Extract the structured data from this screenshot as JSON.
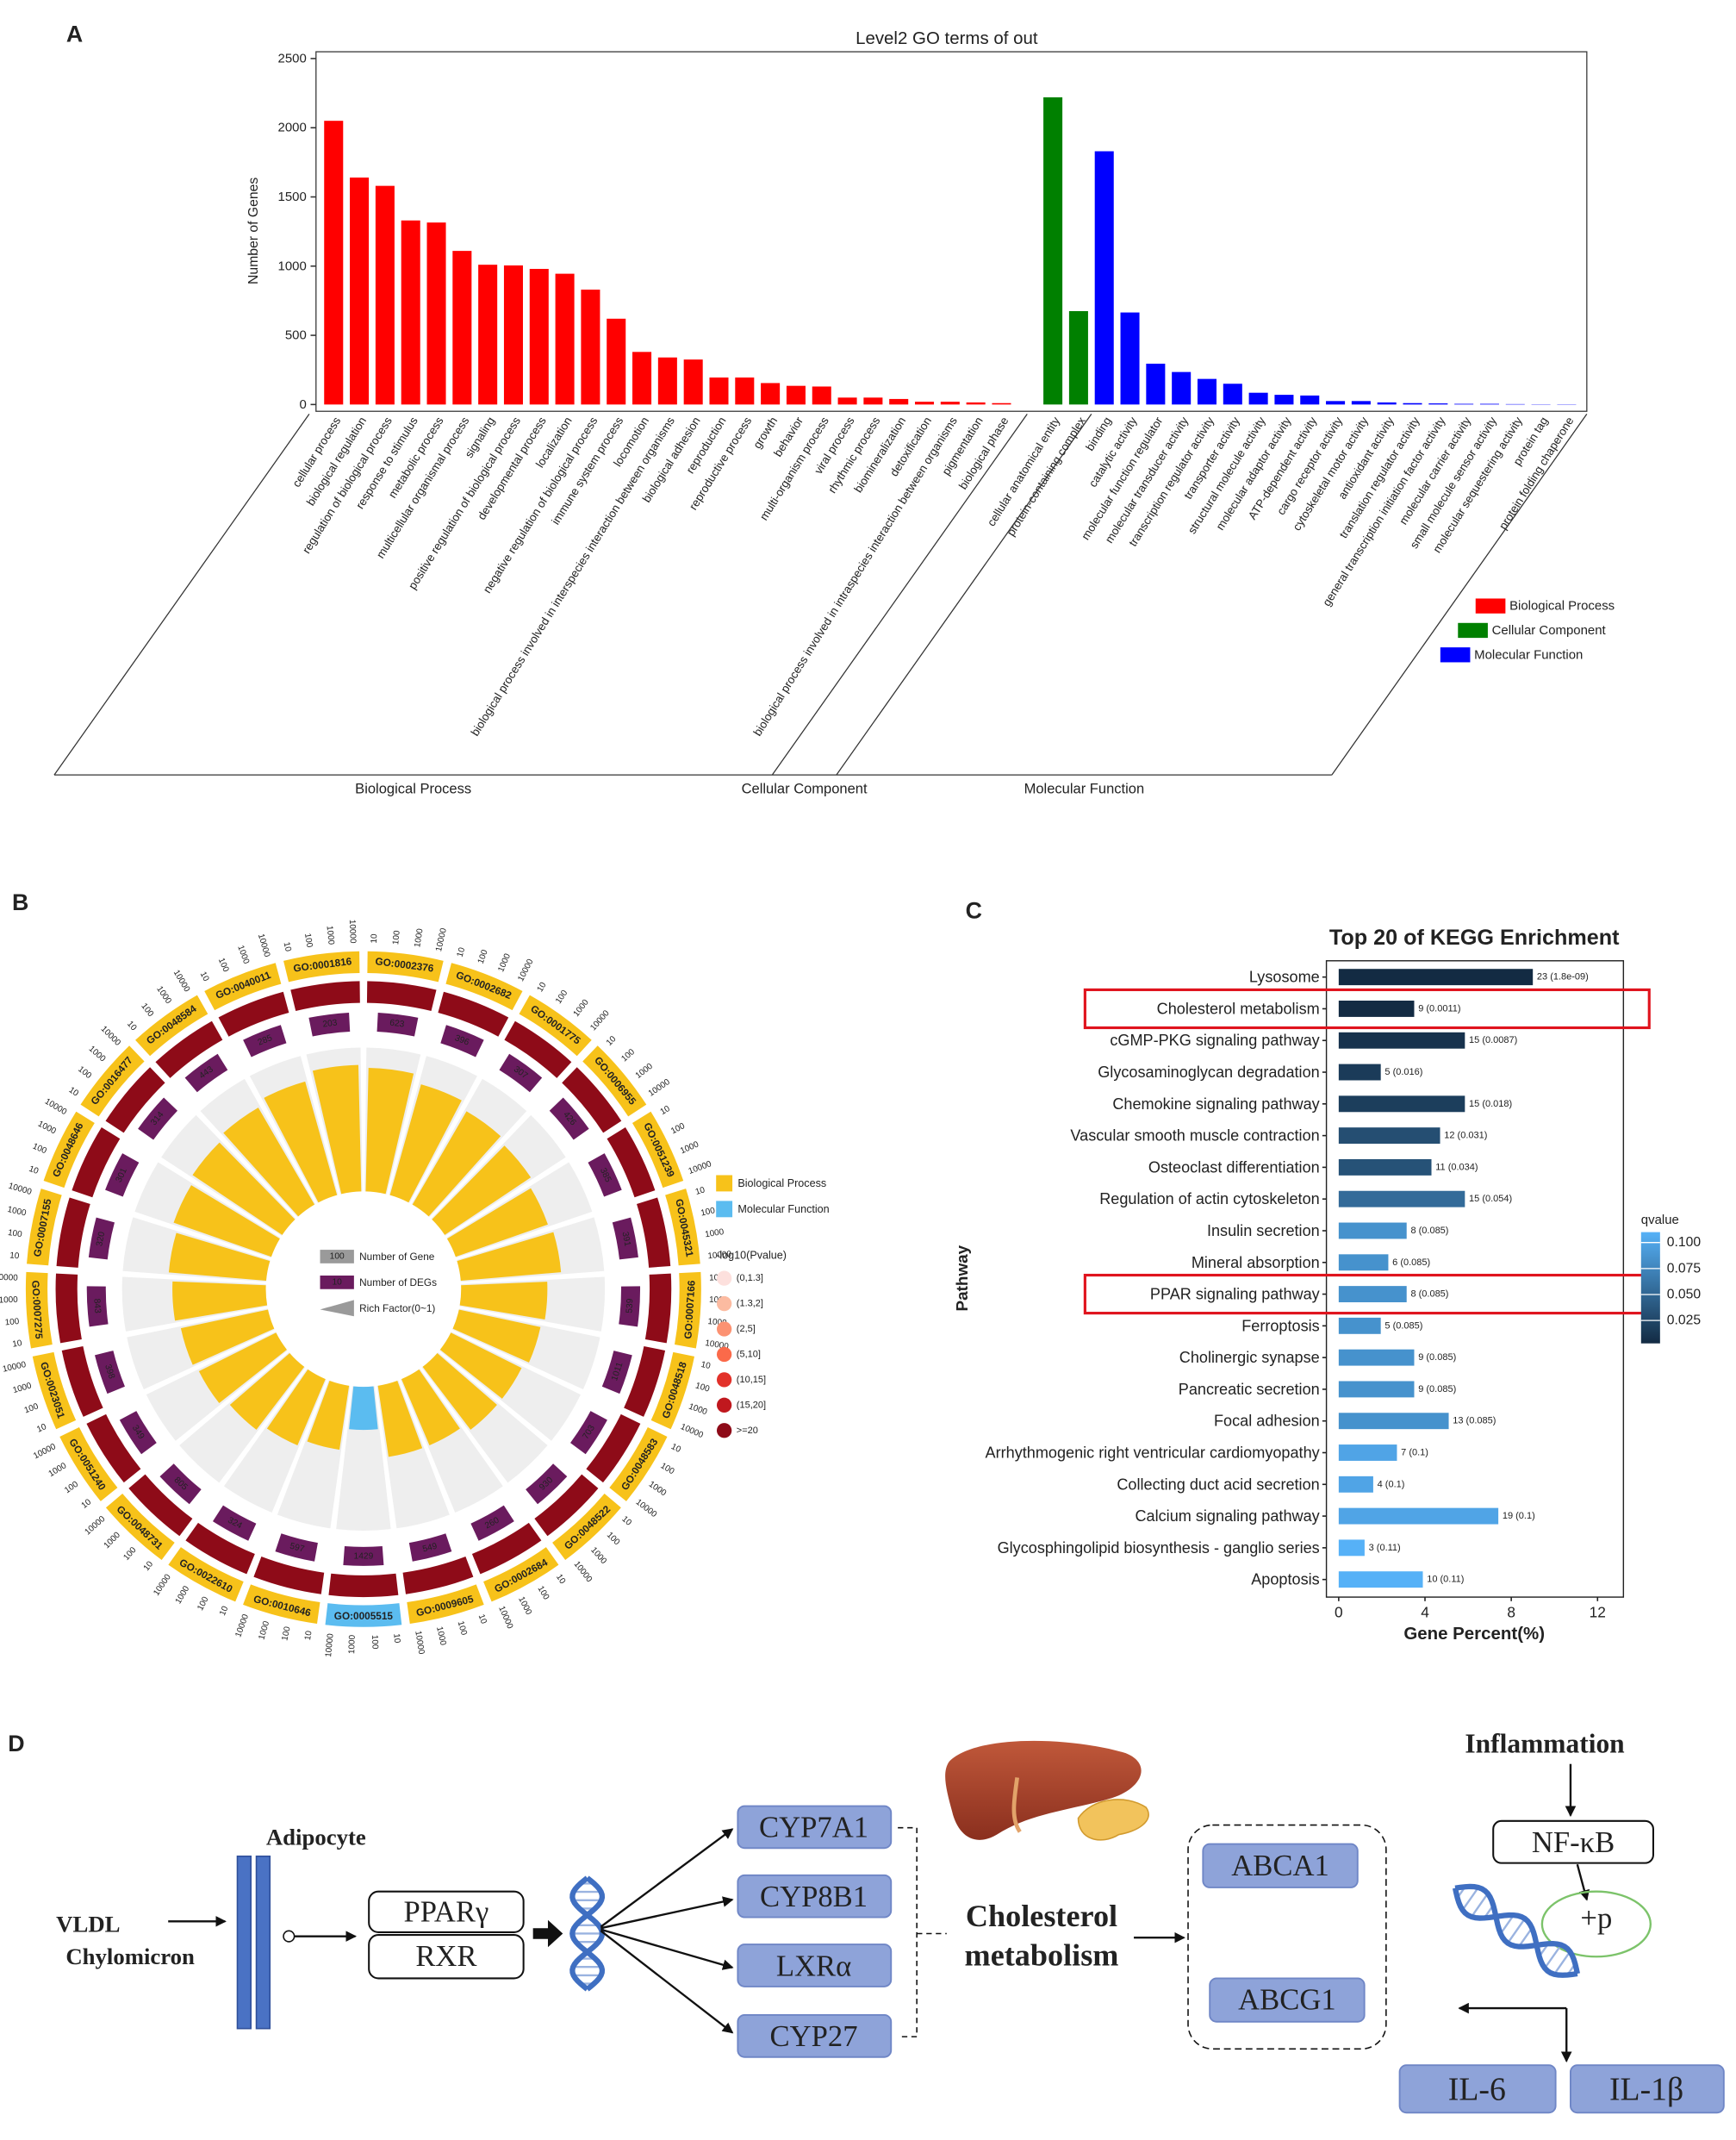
{
  "panel_labels": [
    "A",
    "B",
    "C",
    "D"
  ],
  "chart_data": [
    {
      "type": "bar",
      "title": "Level2 GO terms of out",
      "y_label": "Number of Genes",
      "ylim": [
        0,
        2500
      ],
      "yticks": [
        0,
        500,
        1000,
        1500,
        2000,
        2500
      ],
      "groups": [
        {
          "name": "Biological Process",
          "color": "#ff0000",
          "categories": [
            "cellular process",
            "biological regulation",
            "regulation of biological process",
            "response to stimulus",
            "metabolic process",
            "multicellular organismal process",
            "signaling",
            "positive regulation of biological process",
            "developmental process",
            "localization",
            "negative regulation of biological process",
            "immune system process",
            "locomotion",
            "biological process involved in interspecies interaction between organisms",
            "biological adhesion",
            "reproduction",
            "reproductive process",
            "growth",
            "behavior",
            "multi-organism process",
            "viral process",
            "rhythmic process",
            "biomineralization",
            "detoxification",
            "biological process involved in intraspecies interaction between organisms",
            "pigmentation",
            "biological phase"
          ],
          "values": [
            2050,
            1640,
            1580,
            1330,
            1315,
            1110,
            1010,
            1005,
            980,
            945,
            830,
            620,
            380,
            340,
            325,
            195,
            195,
            155,
            135,
            130,
            50,
            50,
            40,
            20,
            20,
            15,
            10
          ]
        },
        {
          "name": "Cellular Component",
          "color": "#008000",
          "categories": [
            "cellular anatomical entity",
            "protein-containing complex"
          ],
          "values": [
            2220,
            675
          ]
        },
        {
          "name": "Molecular Function",
          "color": "#0000ff",
          "categories": [
            "binding",
            "catalytic activity",
            "molecular function regulator",
            "molecular transducer activity",
            "transcription regulator activity",
            "transporter activity",
            "structural molecule activity",
            "molecular adaptor activity",
            "ATP-dependent activity",
            "cargo receptor activity",
            "cytoskeletal motor activity",
            "antioxidant activity",
            "translation regulator activity",
            "general transcription initiation factor activity",
            "molecular carrier activity",
            "small molecule sensor activity",
            "molecular sequestering activity",
            "protein tag",
            "protein folding chaperone"
          ],
          "values": [
            1830,
            665,
            295,
            235,
            185,
            150,
            85,
            70,
            65,
            25,
            25,
            15,
            10,
            8,
            5,
            5,
            3,
            2,
            2
          ]
        }
      ]
    },
    {
      "type": "radial_bar",
      "go_terms": [
        "GO:0001816",
        "GO:0002376",
        "GO:0002682",
        "GO:0001775",
        "GO:0006955",
        "GO:0051239",
        "GO:0045321",
        "GO:0007166",
        "GO:0048518",
        "GO:0048583",
        "GO:0048522",
        "GO:0002684",
        "GO:0009605",
        "GO:0005515",
        "GO:0010646",
        "GO:0022610",
        "GO:0048731",
        "GO:0051240",
        "GO:0023051",
        "GO:0007275",
        "GO:0007155",
        "GO:0048646",
        "GO:0016477",
        "GO:0048584",
        "GO:0040011"
      ],
      "term_class": [
        0,
        0,
        0,
        0,
        0,
        0,
        0,
        0,
        0,
        0,
        0,
        0,
        0,
        1,
        0,
        0,
        0,
        0,
        0,
        0,
        0,
        0,
        0,
        0,
        0
      ],
      "classes": [
        {
          "name": "Biological Process",
          "color": "#f7c21a"
        },
        {
          "name": "Molecular Function",
          "color": "#5bbcf0"
        }
      ],
      "deg_counts": [
        203,
        623,
        396,
        307,
        426,
        385,
        391,
        539,
        1011,
        703,
        930,
        260,
        549,
        1429,
        597,
        324,
        805,
        349,
        398,
        843,
        320,
        301,
        314,
        443,
        285
      ],
      "rich_factor": [
        0.88,
        0.86,
        0.8,
        0.75,
        0.72,
        0.68,
        0.7,
        0.6,
        0.58,
        0.55,
        0.55,
        0.5,
        0.5,
        0.3,
        0.45,
        0.5,
        0.55,
        0.6,
        0.62,
        0.65,
        0.68,
        0.72,
        0.75,
        0.78,
        0.82
      ],
      "pvalue_bins": [
        6,
        6,
        6,
        6,
        6,
        6,
        6,
        6,
        6,
        6,
        6,
        6,
        6,
        6,
        6,
        6,
        6,
        6,
        6,
        6,
        6,
        6,
        6,
        6,
        6
      ],
      "scale_ticks": [
        10,
        100,
        1000,
        10000
      ],
      "legend_items": [
        {
          "label": "Number of Gene",
          "example": 100,
          "color": "#9a9a9a"
        },
        {
          "label": "Number of DEGs",
          "example": 10,
          "color": "#6a1b5e"
        },
        {
          "label": "Rich Factor(0~1)",
          "color": "#9a9a9a"
        }
      ],
      "pvalue_title": "-log10(Pvalue)",
      "pvalue_legend": [
        {
          "label": "(0,1.3]",
          "color": "#fde0dd"
        },
        {
          "label": "(1.3,2]",
          "color": "#fcbba1"
        },
        {
          "label": "(2,5]",
          "color": "#fc9272"
        },
        {
          "label": "(5,10]",
          "color": "#fb6a4a"
        },
        {
          "label": "(10,15]",
          "color": "#e2312a"
        },
        {
          "label": "(15,20]",
          "color": "#c0181e"
        },
        {
          "label": ">=20",
          "color": "#8e0b18"
        }
      ]
    },
    {
      "type": "hbar",
      "title": "Top 20 of KEGG Enrichment",
      "y_label": "Pathway",
      "x_label": "Gene Percent(%)",
      "categories": [
        "Lysosome",
        "Cholesterol metabolism",
        "cGMP-PKG signaling pathway",
        "Glycosaminoglycan degradation",
        "Chemokine signaling pathway",
        "Vascular smooth muscle contraction",
        "Osteoclast differentiation",
        "Regulation of actin cytoskeleton",
        "Insulin secretion",
        "Mineral absorption",
        "PPAR signaling pathway",
        "Ferroptosis",
        "Cholinergic synapse",
        "Pancreatic secretion",
        "Focal adhesion",
        "Arrhythmogenic right ventricular cardiomyopathy",
        "Collecting duct acid secretion",
        "Calcium signaling pathway",
        "Glycosphingolipid biosynthesis - ganglio series",
        "Apoptosis"
      ],
      "values": [
        9.0,
        3.5,
        5.85,
        1.95,
        5.85,
        4.7,
        4.3,
        5.85,
        3.15,
        2.3,
        3.15,
        1.95,
        3.5,
        3.5,
        5.1,
        2.7,
        1.6,
        7.4,
        1.2,
        3.9
      ],
      "bar_labels": [
        "23 (1.8e-09)",
        "9 (0.0011)",
        "15 (0.0087)",
        "5 (0.016)",
        "15 (0.018)",
        "12 (0.031)",
        "11 (0.034)",
        "15 (0.054)",
        "8 (0.085)",
        "6 (0.085)",
        "8 (0.085)",
        "5 (0.085)",
        "9 (0.085)",
        "9 (0.085)",
        "13 (0.085)",
        "7 (0.1)",
        "4 (0.1)",
        "19 (0.1)",
        "3 (0.11)",
        "10 (0.11)"
      ],
      "qvalues": [
        1.8e-09,
        0.0011,
        0.0087,
        0.016,
        0.018,
        0.031,
        0.034,
        0.054,
        0.085,
        0.085,
        0.085,
        0.085,
        0.085,
        0.085,
        0.085,
        0.1,
        0.1,
        0.1,
        0.11,
        0.11
      ],
      "xlim": [
        -0.57,
        13.2
      ],
      "xticks": [
        0,
        4,
        8,
        12
      ],
      "color_scale": {
        "title": "qvalue",
        "lim": [
          0.003,
          0.11
        ],
        "low": "#132b43",
        "high": "#56b1f7",
        "ticks": [
          0.025,
          {
            "value": 0.05,
            "label": "0.050"
          },
          0.075,
          {
            "value": 0.1,
            "label": "0.100"
          }
        ]
      },
      "highlight": [
        1,
        10
      ],
      "highlight_color": "#e0141e"
    }
  ],
  "diagram": {
    "input": [
      "VLDL",
      "Chylomicron"
    ],
    "cell": "Adipocyte",
    "receptors": [
      "PPARγ",
      "RXR"
    ],
    "genes": [
      "CYP7A1",
      "CYP8B1",
      "LXRα",
      "CYP27"
    ],
    "process": [
      "Cholesterol",
      "metabolism"
    ],
    "transporters": [
      "ABCA1",
      "ABCG1"
    ],
    "inflammation": "Inflammation",
    "factor": "NF-κB",
    "phospho": "+p",
    "cytokines": [
      "IL-6",
      "IL-1β"
    ]
  }
}
